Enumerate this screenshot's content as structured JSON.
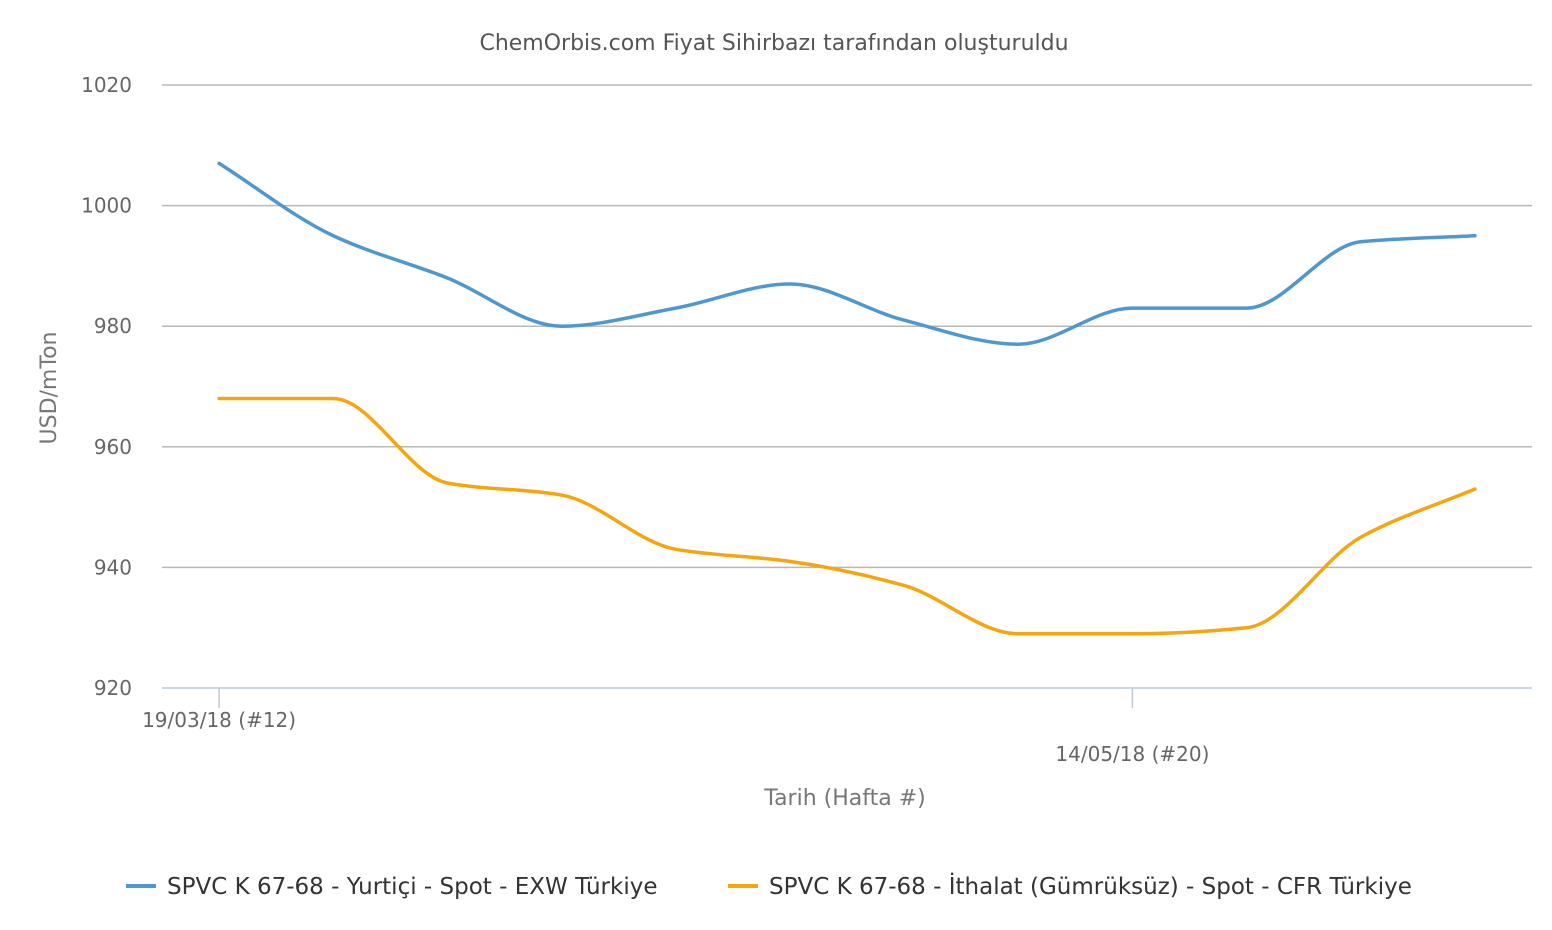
{
  "chart_data": {
    "type": "line",
    "title": "ChemOrbis.com Fiyat Sihirbazı tarafından oluşturuldu",
    "xlabel": "Tarih (Hafta #)",
    "ylabel": "USD/mTon",
    "ylim": [
      920,
      1020
    ],
    "yticks": [
      920,
      940,
      960,
      980,
      1000,
      1020
    ],
    "grid": true,
    "legend": "bottom",
    "x": [
      12,
      13,
      14,
      15,
      16,
      17,
      18,
      19,
      20,
      21,
      22,
      23
    ],
    "xlim": [
      11.5,
      23.5
    ],
    "xticks": [
      {
        "x": 12,
        "label": "19/03/18 (#12)"
      },
      {
        "x": 20,
        "label": "14/05/18 (#20)"
      }
    ],
    "series": [
      {
        "name": "SPVC K 67-68 - Yurtiçi - Spot - EXW Türkiye",
        "color": "#4f97cf",
        "values": [
          1007,
          995,
          988,
          980,
          983,
          987,
          981,
          977,
          983,
          983,
          994,
          995
        ]
      },
      {
        "name": "SPVC K 67-68 - İthalat (Gümrüksüz) - Spot - CFR Türkiye",
        "color": "#f5a50e",
        "values": [
          968,
          968,
          954,
          952,
          943,
          941,
          937,
          929,
          929,
          930,
          945,
          953
        ]
      }
    ]
  }
}
